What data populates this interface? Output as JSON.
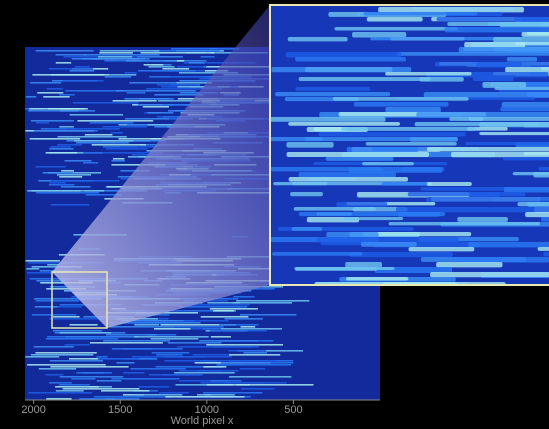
{
  "chart_data": {
    "type": "image",
    "xlabel": "World pixel x",
    "xlim": [
      2050,
      0
    ],
    "xticks": [
      2000,
      1500,
      1000,
      500
    ]
  }
}
